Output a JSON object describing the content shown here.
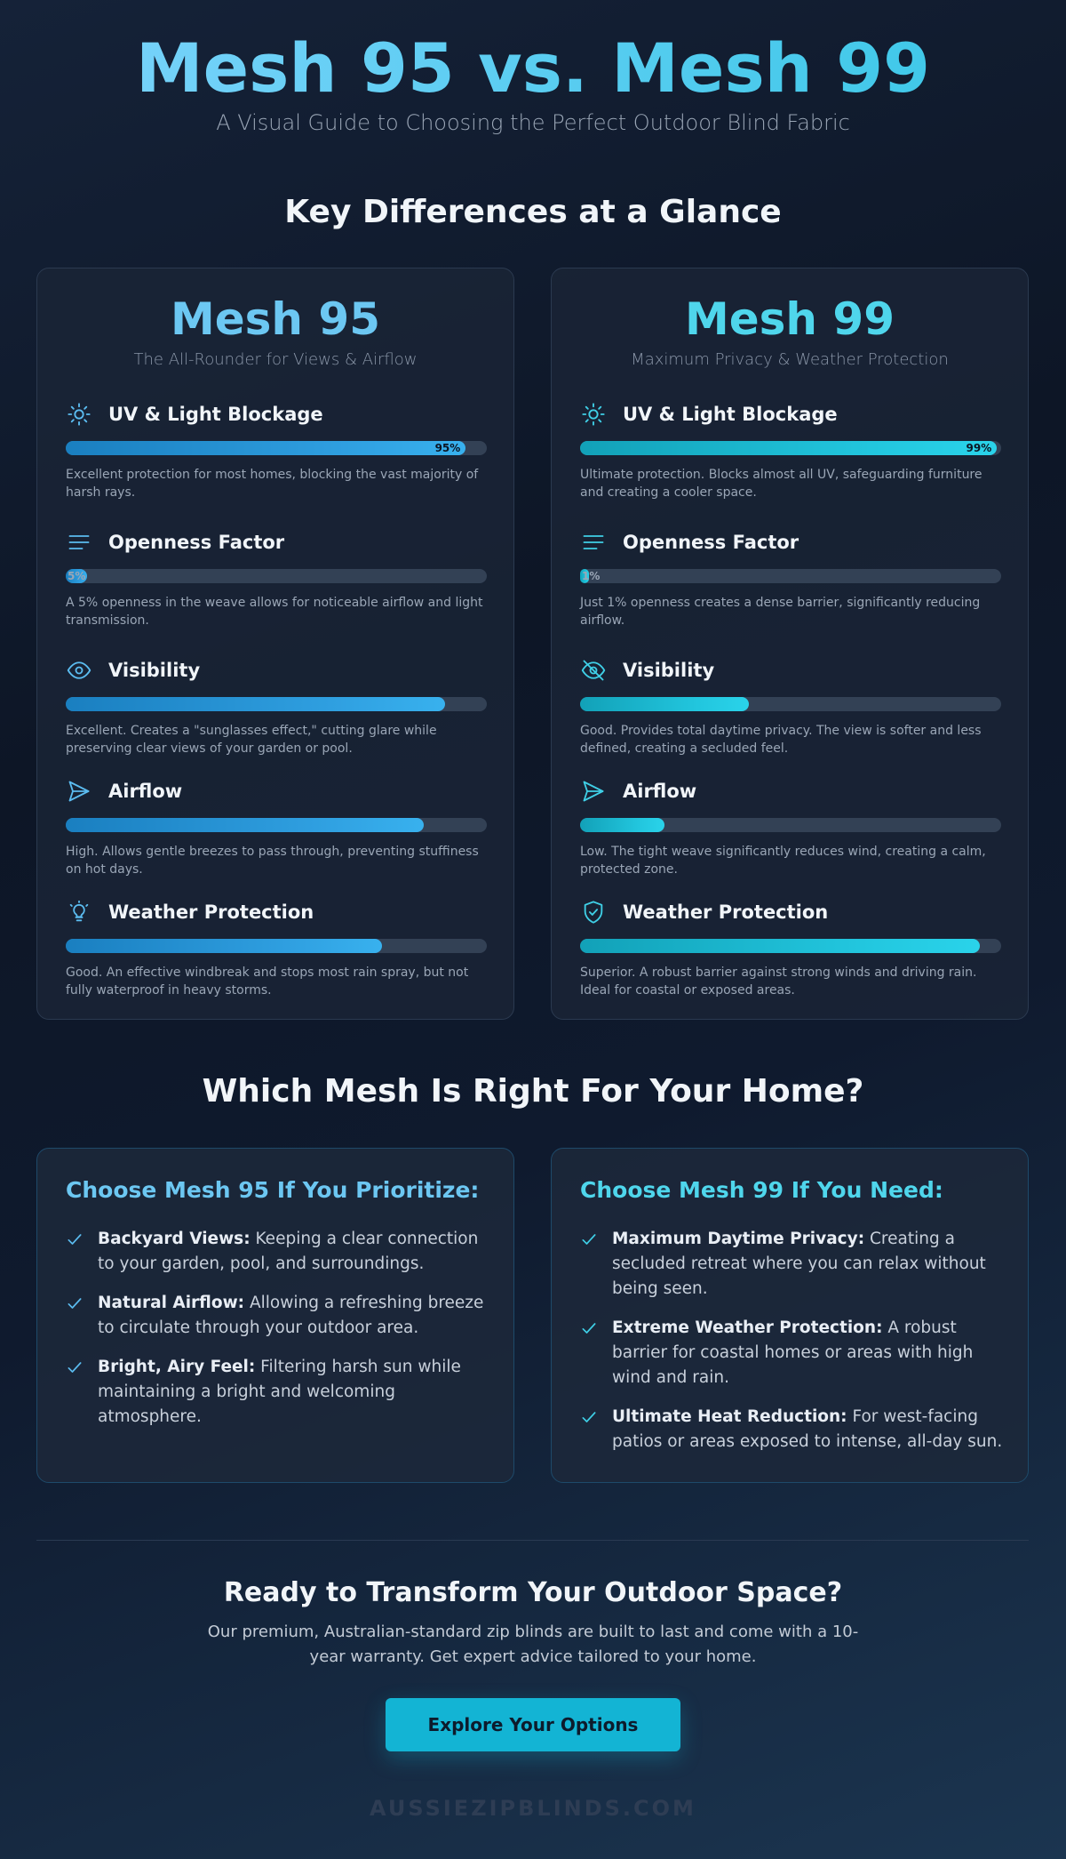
{
  "hero": {
    "title": "Mesh 95 vs. Mesh 99",
    "subtitle": "A Visual Guide to Choosing the Perfect Outdoor Blind Fabric"
  },
  "sections": {
    "differences_title": "Key Differences at a Glance",
    "choose_title": "Which Mesh Is Right For Your Home?"
  },
  "mesh95": {
    "name": "Mesh 95",
    "tagline": "The All-Rounder for Views & Airflow",
    "metrics": [
      {
        "label": "UV & Light Blockage",
        "icon": "sun-icon",
        "value": 0.95,
        "pct_label": "95%",
        "description": "Excellent protection for most homes, blocking the vast majority of harsh rays."
      },
      {
        "label": "Openness Factor",
        "icon": "lines-icon",
        "value": 0.05,
        "pct_label": "5%",
        "description": "A 5% openness in the weave allows for noticeable airflow and light transmission."
      },
      {
        "label": "Visibility",
        "icon": "eye-icon",
        "value": 0.9,
        "pct_label": "",
        "description": "Excellent. Creates a \"sunglasses effect,\" cutting glare while preserving clear views of your garden or pool."
      },
      {
        "label": "Airflow",
        "icon": "paper-plane-icon",
        "value": 0.85,
        "pct_label": "",
        "description": "High. Allows gentle breezes to pass through, preventing stuffiness on hot days."
      },
      {
        "label": "Weather Protection",
        "icon": "lightbulb-icon",
        "value": 0.75,
        "pct_label": "",
        "description": "Good. An effective windbreak and stops most rain spray, but not fully waterproof in heavy storms."
      }
    ]
  },
  "mesh99": {
    "name": "Mesh 99",
    "tagline": "Maximum Privacy & Weather Protection",
    "metrics": [
      {
        "label": "UV & Light Blockage",
        "icon": "sun-icon",
        "value": 0.99,
        "pct_label": "99%",
        "description": "Ultimate protection. Blocks almost all UV, safeguarding furniture and creating a cooler space."
      },
      {
        "label": "Openness Factor",
        "icon": "lines-icon",
        "value": 0.01,
        "pct_label": "1%",
        "description": "Just 1% openness creates a dense barrier, significantly reducing airflow."
      },
      {
        "label": "Visibility",
        "icon": "eye-off-icon",
        "value": 0.4,
        "pct_label": "",
        "description": "Good. Provides total daytime privacy. The view is softer and less defined, creating a secluded feel."
      },
      {
        "label": "Airflow",
        "icon": "paper-plane-icon",
        "value": 0.2,
        "pct_label": "",
        "description": "Low. The tight weave significantly reduces wind, creating a calm, protected zone."
      },
      {
        "label": "Weather Protection",
        "icon": "shield-check-icon",
        "value": 0.95,
        "pct_label": "",
        "description": "Superior. A robust barrier against strong winds and driving rain. Ideal for coastal or exposed areas."
      }
    ]
  },
  "choose95": {
    "title": "Choose Mesh 95 If You Prioritize:",
    "items": [
      {
        "bold": "Backyard Views:",
        "text": " Keeping a clear connection to your garden, pool, and surroundings."
      },
      {
        "bold": "Natural Airflow:",
        "text": " Allowing a refreshing breeze to circulate through your outdoor area."
      },
      {
        "bold": "Bright, Airy Feel:",
        "text": " Filtering harsh sun while maintaining a bright and welcoming atmosphere."
      }
    ]
  },
  "choose99": {
    "title": "Choose Mesh 99 If You Need:",
    "items": [
      {
        "bold": "Maximum Daytime Privacy:",
        "text": " Creating a secluded retreat where you can relax without being seen."
      },
      {
        "bold": "Extreme Weather Protection:",
        "text": " A robust barrier for coastal homes or areas with high wind and rain."
      },
      {
        "bold": "Ultimate Heat Reduction:",
        "text": " For west-facing patios or areas exposed to intense, all-day sun."
      }
    ]
  },
  "cta": {
    "title": "Ready to Transform Your Outdoor Space?",
    "text": "Our premium, Australian-standard zip blinds are built to last and come with a 10-year warranty. Get expert advice tailored to your home.",
    "button": "Explore Your Options"
  },
  "footer": {
    "brand": "AUSSIEZIPBLINDS.COM"
  },
  "colors": {
    "mesh95_accent": "#6cc7f2",
    "mesh99_accent": "#4fd6ec",
    "button": "#13b4d4",
    "background": "#0d1626"
  }
}
